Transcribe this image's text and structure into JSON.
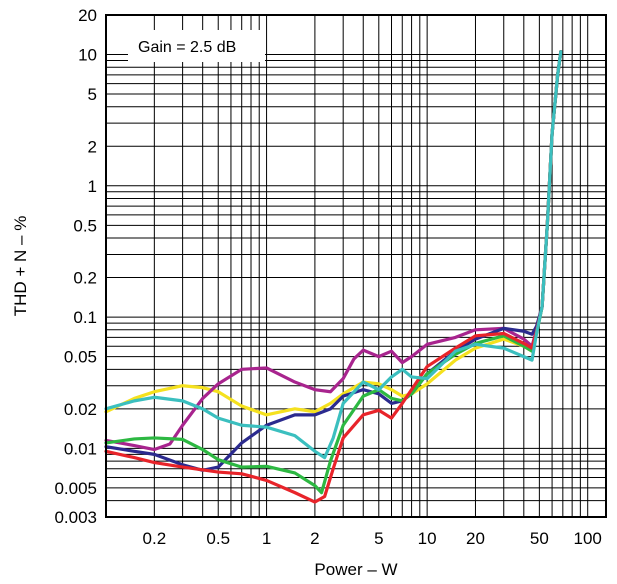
{
  "chart_data": {
    "type": "line",
    "xscale": "log",
    "yscale": "log",
    "xlim": [
      0.1,
      130
    ],
    "ylim": [
      0.003,
      20
    ],
    "xlabel": "Power – W",
    "ylabel": "THD + N – %",
    "annotation": "Gain = 2.5 dB",
    "grid": true,
    "x_ticks": [
      {
        "value": 0.2,
        "label": "0.2"
      },
      {
        "value": 0.5,
        "label": "0.5"
      },
      {
        "value": 1,
        "label": "1"
      },
      {
        "value": 2,
        "label": "2"
      },
      {
        "value": 5,
        "label": "5"
      },
      {
        "value": 10,
        "label": "10"
      },
      {
        "value": 20,
        "label": "20"
      },
      {
        "value": 50,
        "label": "50"
      },
      {
        "value": 100,
        "label": "100"
      }
    ],
    "y_ticks": [
      {
        "value": 20,
        "label": "20"
      },
      {
        "value": 10,
        "label": "10"
      },
      {
        "value": 5,
        "label": "5"
      },
      {
        "value": 2,
        "label": "2"
      },
      {
        "value": 1,
        "label": "1"
      },
      {
        "value": 0.5,
        "label": "0.5"
      },
      {
        "value": 0.2,
        "label": "0.2"
      },
      {
        "value": 0.1,
        "label": "0.1"
      },
      {
        "value": 0.05,
        "label": "0.05"
      },
      {
        "value": 0.02,
        "label": "0.02"
      },
      {
        "value": 0.01,
        "label": "0.01"
      },
      {
        "value": 0.005,
        "label": "0.005"
      },
      {
        "value": 0.003,
        "label": "0.003"
      }
    ],
    "series": [
      {
        "color": "#f5e11e",
        "points": [
          [
            0.1,
            0.019
          ],
          [
            0.15,
            0.024
          ],
          [
            0.2,
            0.027
          ],
          [
            0.3,
            0.03
          ],
          [
            0.4,
            0.029
          ],
          [
            0.5,
            0.027
          ],
          [
            0.7,
            0.021
          ],
          [
            1,
            0.018
          ],
          [
            1.5,
            0.02
          ],
          [
            2,
            0.019
          ],
          [
            2.5,
            0.022
          ],
          [
            3,
            0.026
          ],
          [
            4,
            0.032
          ],
          [
            5,
            0.031
          ],
          [
            6,
            0.028
          ],
          [
            7,
            0.025
          ],
          [
            8,
            0.026
          ],
          [
            10,
            0.031
          ],
          [
            15,
            0.047
          ],
          [
            20,
            0.058
          ],
          [
            30,
            0.068
          ],
          [
            40,
            0.06
          ],
          [
            45,
            0.055
          ],
          [
            48,
            0.075
          ],
          [
            52,
            0.12
          ],
          [
            56,
            0.5
          ],
          [
            60,
            2.5
          ],
          [
            65,
            7
          ],
          [
            68,
            10.5
          ]
        ]
      },
      {
        "color": "#a8248e",
        "points": [
          [
            0.1,
            0.0115
          ],
          [
            0.15,
            0.0105
          ],
          [
            0.2,
            0.0098
          ],
          [
            0.25,
            0.0108
          ],
          [
            0.3,
            0.015
          ],
          [
            0.4,
            0.024
          ],
          [
            0.5,
            0.031
          ],
          [
            0.7,
            0.04
          ],
          [
            1,
            0.041
          ],
          [
            1.5,
            0.032
          ],
          [
            2,
            0.028
          ],
          [
            2.5,
            0.027
          ],
          [
            3,
            0.034
          ],
          [
            3.5,
            0.048
          ],
          [
            4,
            0.056
          ],
          [
            5,
            0.05
          ],
          [
            6,
            0.055
          ],
          [
            7,
            0.045
          ],
          [
            8,
            0.05
          ],
          [
            10,
            0.062
          ],
          [
            15,
            0.07
          ],
          [
            20,
            0.08
          ],
          [
            30,
            0.082
          ],
          [
            40,
            0.068
          ],
          [
            45,
            0.06
          ],
          [
            48,
            0.08
          ],
          [
            52,
            0.12
          ],
          [
            56,
            0.5
          ],
          [
            60,
            2.5
          ],
          [
            65,
            7
          ],
          [
            68,
            10.5
          ]
        ]
      },
      {
        "color": "#2b2a8e",
        "points": [
          [
            0.1,
            0.0103
          ],
          [
            0.15,
            0.0095
          ],
          [
            0.2,
            0.009
          ],
          [
            0.3,
            0.0075
          ],
          [
            0.4,
            0.0068
          ],
          [
            0.5,
            0.0072
          ],
          [
            0.7,
            0.011
          ],
          [
            1,
            0.015
          ],
          [
            1.5,
            0.018
          ],
          [
            2,
            0.018
          ],
          [
            2.5,
            0.02
          ],
          [
            3,
            0.025
          ],
          [
            4,
            0.028
          ],
          [
            5,
            0.026
          ],
          [
            6,
            0.022
          ],
          [
            7,
            0.023
          ],
          [
            8,
            0.026
          ],
          [
            10,
            0.037
          ],
          [
            15,
            0.055
          ],
          [
            20,
            0.068
          ],
          [
            30,
            0.082
          ],
          [
            40,
            0.078
          ],
          [
            45,
            0.074
          ],
          [
            48,
            0.085
          ],
          [
            52,
            0.12
          ],
          [
            56,
            0.5
          ],
          [
            60,
            2.5
          ],
          [
            65,
            7
          ],
          [
            68,
            10.5
          ]
        ]
      },
      {
        "color": "#2db842",
        "points": [
          [
            0.1,
            0.011
          ],
          [
            0.15,
            0.0118
          ],
          [
            0.2,
            0.012
          ],
          [
            0.3,
            0.0117
          ],
          [
            0.4,
            0.0098
          ],
          [
            0.5,
            0.0082
          ],
          [
            0.7,
            0.0072
          ],
          [
            1,
            0.0073
          ],
          [
            1.5,
            0.0065
          ],
          [
            2,
            0.0052
          ],
          [
            2.2,
            0.0046
          ],
          [
            2.5,
            0.008
          ],
          [
            3,
            0.015
          ],
          [
            4,
            0.025
          ],
          [
            5,
            0.028
          ],
          [
            6,
            0.024
          ],
          [
            7,
            0.023
          ],
          [
            8,
            0.026
          ],
          [
            10,
            0.037
          ],
          [
            15,
            0.052
          ],
          [
            20,
            0.063
          ],
          [
            30,
            0.072
          ],
          [
            40,
            0.06
          ],
          [
            45,
            0.055
          ],
          [
            48,
            0.075
          ],
          [
            52,
            0.12
          ],
          [
            56,
            0.5
          ],
          [
            60,
            2.5
          ],
          [
            65,
            7
          ],
          [
            68,
            10.5
          ]
        ]
      },
      {
        "color": "#e8242a",
        "points": [
          [
            0.1,
            0.0095
          ],
          [
            0.15,
            0.0085
          ],
          [
            0.2,
            0.0078
          ],
          [
            0.3,
            0.0072
          ],
          [
            0.5,
            0.0066
          ],
          [
            0.7,
            0.0064
          ],
          [
            1,
            0.0057
          ],
          [
            1.5,
            0.0046
          ],
          [
            2,
            0.0039
          ],
          [
            2.3,
            0.0043
          ],
          [
            2.6,
            0.007
          ],
          [
            3,
            0.012
          ],
          [
            4,
            0.018
          ],
          [
            5,
            0.0195
          ],
          [
            6,
            0.017
          ],
          [
            7,
            0.022
          ],
          [
            8,
            0.028
          ],
          [
            10,
            0.042
          ],
          [
            15,
            0.058
          ],
          [
            20,
            0.072
          ],
          [
            30,
            0.075
          ],
          [
            40,
            0.063
          ],
          [
            45,
            0.058
          ],
          [
            48,
            0.078
          ],
          [
            52,
            0.12
          ],
          [
            56,
            0.5
          ],
          [
            60,
            2.5
          ],
          [
            65,
            7
          ],
          [
            68,
            10.5
          ]
        ]
      },
      {
        "color": "#3bbfbf",
        "points": [
          [
            0.1,
            0.02
          ],
          [
            0.15,
            0.023
          ],
          [
            0.2,
            0.0245
          ],
          [
            0.3,
            0.023
          ],
          [
            0.4,
            0.02
          ],
          [
            0.5,
            0.017
          ],
          [
            0.7,
            0.015
          ],
          [
            1,
            0.0145
          ],
          [
            1.5,
            0.0125
          ],
          [
            2,
            0.0095
          ],
          [
            2.3,
            0.0085
          ],
          [
            2.6,
            0.012
          ],
          [
            3,
            0.022
          ],
          [
            4,
            0.032
          ],
          [
            5,
            0.028
          ],
          [
            6,
            0.035
          ],
          [
            7,
            0.04
          ],
          [
            8,
            0.035
          ],
          [
            10,
            0.034
          ],
          [
            15,
            0.055
          ],
          [
            20,
            0.062
          ],
          [
            30,
            0.058
          ],
          [
            40,
            0.05
          ],
          [
            45,
            0.047
          ],
          [
            48,
            0.075
          ],
          [
            52,
            0.12
          ],
          [
            56,
            0.5
          ],
          [
            60,
            2.5
          ],
          [
            65,
            7
          ],
          [
            68,
            10.5
          ]
        ]
      }
    ]
  }
}
